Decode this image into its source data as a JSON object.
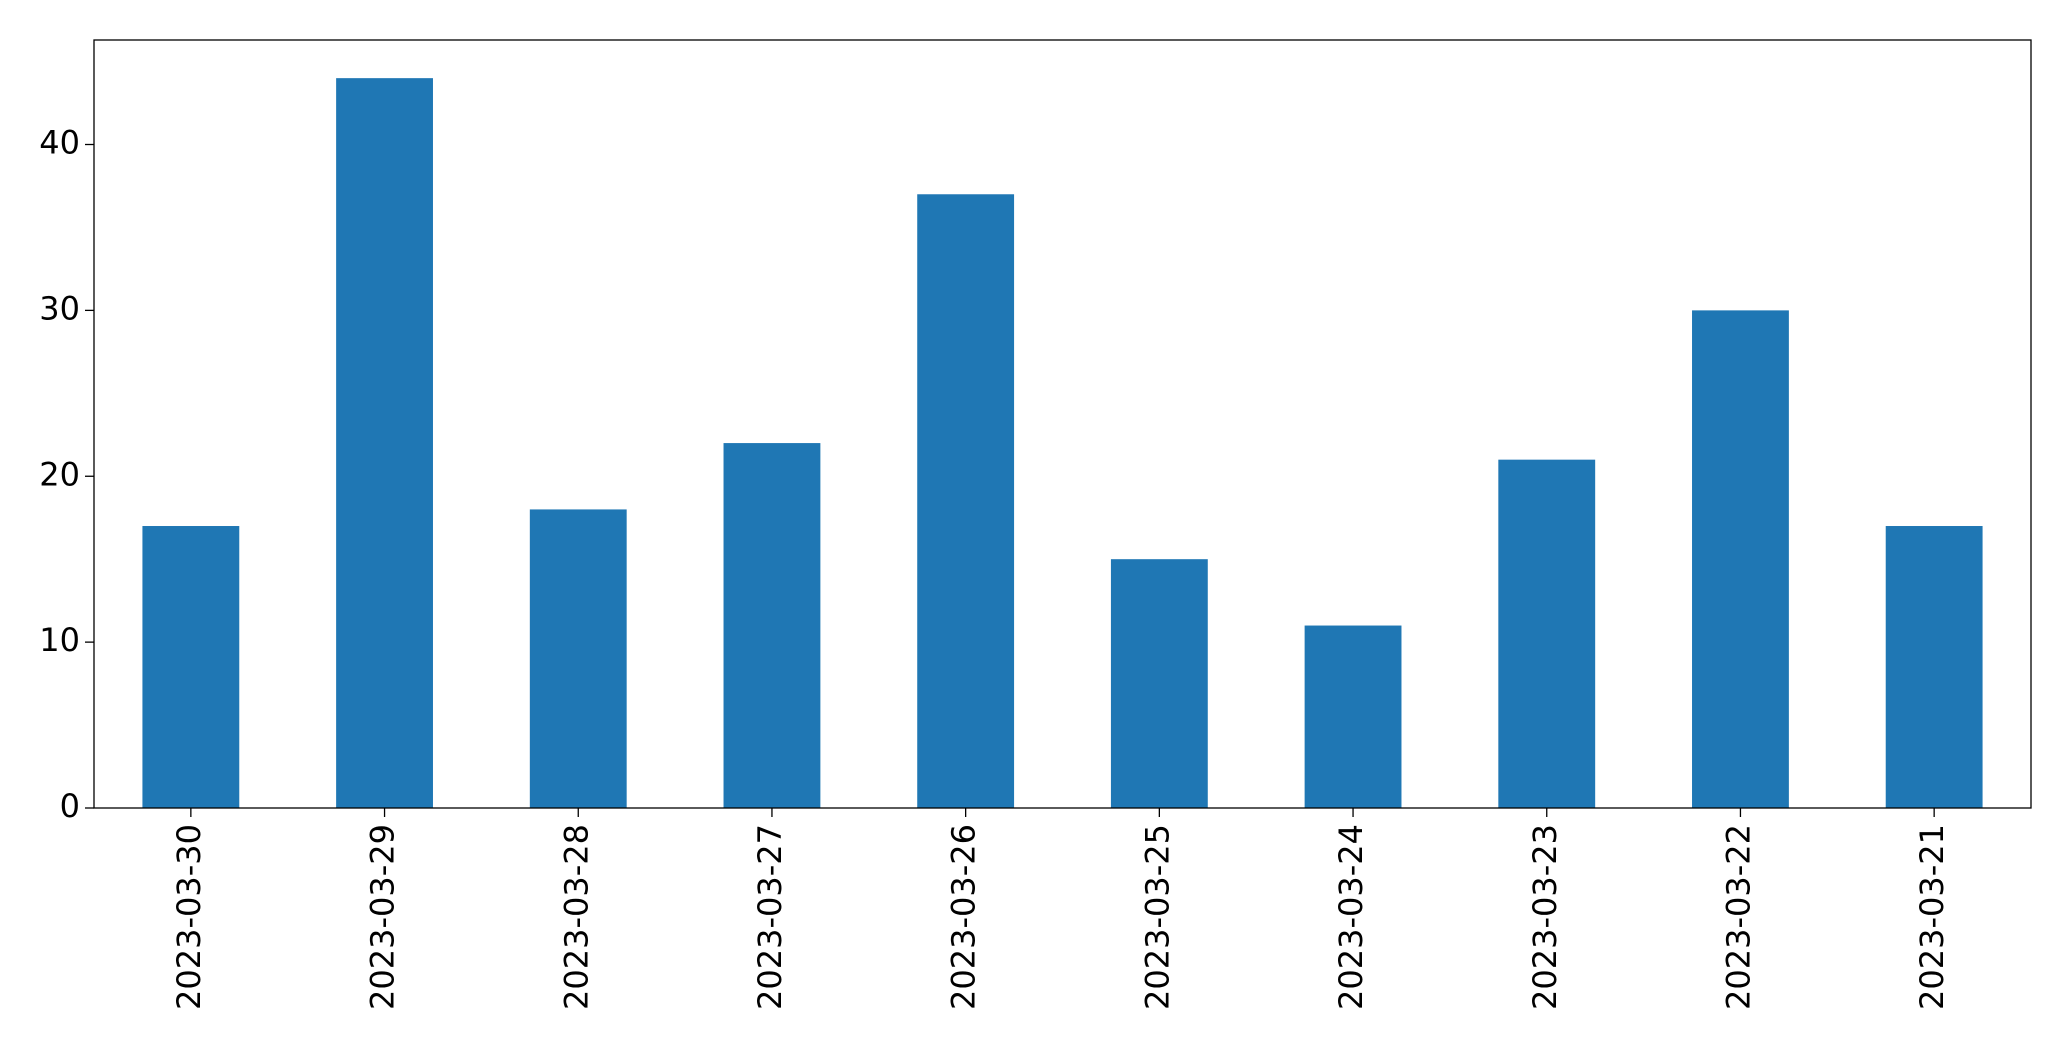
{
  "chart_data": {
    "type": "bar",
    "categories": [
      "2023-03-30",
      "2023-03-29",
      "2023-03-28",
      "2023-03-27",
      "2023-03-26",
      "2023-03-25",
      "2023-03-24",
      "2023-03-23",
      "2023-03-22",
      "2023-03-21"
    ],
    "values": [
      17,
      44,
      18,
      22,
      37,
      15,
      11,
      21,
      30,
      17
    ],
    "color": "#1f77b4",
    "ylim": [
      0,
      46.3
    ],
    "yticks": [
      0,
      10,
      20,
      30,
      40
    ],
    "grid": false
  }
}
